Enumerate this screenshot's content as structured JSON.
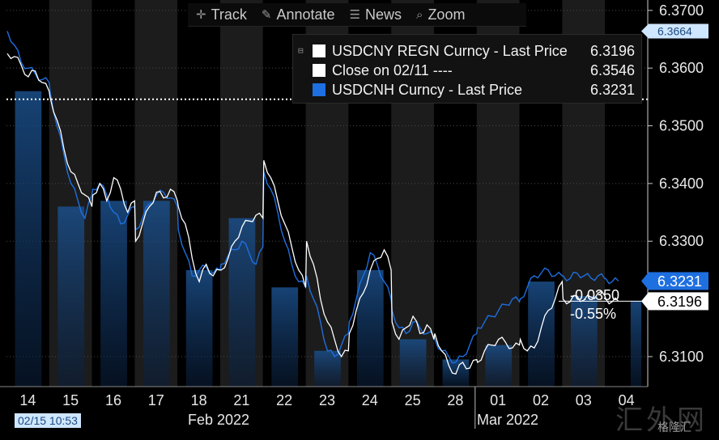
{
  "toolbar": {
    "items": [
      {
        "label": "Track",
        "icon": "crosshair-icon"
      },
      {
        "label": "Annotate",
        "icon": "pencil-icon"
      },
      {
        "label": "News",
        "icon": "news-icon"
      },
      {
        "label": "Zoom",
        "icon": "magnifier-icon"
      }
    ]
  },
  "legend": {
    "items": [
      {
        "name": "USDCNY REGN Curncy - Last Price",
        "value": "6.3196",
        "color": "#ffffff"
      },
      {
        "name": "Close on 02/11 ----",
        "value": "6.3546",
        "color": "#ffffff"
      },
      {
        "name": "USDCNH Curncy - Last Price",
        "value": "6.3231",
        "color": "#1e6fe0"
      }
    ]
  },
  "time_label": "02/15 10:53",
  "watermark": "汇外网",
  "brand": "格隆汇",
  "chart_data": {
    "type": "line",
    "title": "",
    "ylim": [
      6.3048,
      6.3718
    ],
    "y_ticks": [
      "6.3700",
      "6.3600",
      "6.3500",
      "6.3400",
      "6.3300",
      "6.3100"
    ],
    "day_labels": [
      "14",
      "15",
      "16",
      "17",
      "18",
      "21",
      "22",
      "23",
      "24",
      "25",
      "28",
      "01",
      "02",
      "03",
      "04"
    ],
    "month_labels": [
      "Feb 2022",
      "Mar 2022"
    ],
    "reference": {
      "label": "Close on 02/11",
      "value": 6.3546
    },
    "change_labels": [
      "-0.0350",
      "-0.55%"
    ],
    "last_values": {
      "usdcny": "6.3196",
      "usdcnh": "6.3231",
      "high": "6.3664"
    },
    "series": [
      {
        "name": "USDCNY REGN Curncy - Last Price",
        "color": "#ffffff",
        "days": [
          [
            6.3625,
            6.362,
            6.3605,
            6.3585,
            6.3595,
            6.3575,
            6.356
          ],
          [
            6.355,
            6.351,
            6.346,
            6.342,
            6.34,
            6.338,
            6.336
          ],
          [
            6.338,
            6.34,
            6.337,
            6.341,
            6.339,
            6.335,
            6.337
          ],
          [
            6.33,
            6.333,
            6.336,
            6.3385,
            6.3375,
            6.339,
            6.337
          ],
          [
            6.336,
            6.333,
            6.327,
            6.323,
            6.326,
            6.324,
            6.325
          ],
          [
            6.325,
            6.327,
            6.33,
            6.3325,
            6.3335,
            6.3345,
            6.334
          ],
          [
            6.344,
            6.341,
            6.337,
            6.333,
            6.329,
            6.325,
            6.322
          ],
          [
            6.33,
            6.326,
            6.32,
            6.316,
            6.313,
            6.31,
            6.311
          ],
          [
            6.314,
            6.318,
            6.321,
            6.325,
            6.327,
            6.3285,
            6.325
          ],
          [
            6.316,
            6.313,
            6.315,
            6.317,
            6.314,
            6.3155,
            6.313
          ],
          [
            6.314,
            6.311,
            6.3085,
            6.307,
            6.309,
            6.308,
            6.3095
          ],
          [
            6.309,
            6.311,
            6.312,
            6.313,
            6.3125,
            6.3115,
            6.312
          ],
          [
            6.313,
            6.311,
            6.3115,
            6.315,
            6.318,
            6.32,
            6.323
          ],
          [
            6.32,
            6.3195,
            6.3205,
            6.3198,
            6.3203,
            6.321,
            6.3205
          ],
          [
            6.32,
            6.3195,
            6.3196
          ]
        ]
      },
      {
        "name": "USDCNH Curncy - Last Price",
        "color": "#1e6fe0",
        "days": [
          [
            6.3664,
            6.364,
            6.361,
            6.36,
            6.359,
            6.358,
            6.3575
          ],
          [
            6.356,
            6.35,
            6.345,
            6.34,
            6.337,
            6.334,
            6.338
          ],
          [
            6.339,
            6.34,
            6.338,
            6.335,
            6.333,
            6.3345,
            6.336
          ],
          [
            6.332,
            6.334,
            6.3365,
            6.338,
            6.3385,
            6.3375,
            6.336
          ],
          [
            6.332,
            6.328,
            6.324,
            6.325,
            6.3255,
            6.3245,
            6.325
          ],
          [
            6.326,
            6.3275,
            6.3285,
            6.33,
            6.328,
            6.326,
            6.329
          ],
          [
            6.342,
            6.339,
            6.335,
            6.33,
            6.326,
            6.323,
            6.322
          ],
          [
            6.324,
            6.32,
            6.316,
            6.311,
            6.31,
            6.312,
            6.314
          ],
          [
            6.316,
            6.32,
            6.324,
            6.328,
            6.326,
            6.323,
            6.32
          ],
          [
            6.318,
            6.315,
            6.314,
            6.316,
            6.315,
            6.314,
            6.3135
          ],
          [
            6.313,
            6.311,
            6.31,
            6.309,
            6.31,
            6.312,
            6.314
          ],
          [
            6.315,
            6.316,
            6.317,
            6.318,
            6.319,
            6.32,
            6.3195
          ],
          [
            6.32,
            6.322,
            6.324,
            6.3245,
            6.325,
            6.324,
            6.324
          ],
          [
            6.324,
            6.3235,
            6.3245,
            6.324,
            6.3236,
            6.324,
            6.3235
          ],
          [
            6.3235,
            6.323,
            6.3231
          ]
        ]
      }
    ]
  }
}
